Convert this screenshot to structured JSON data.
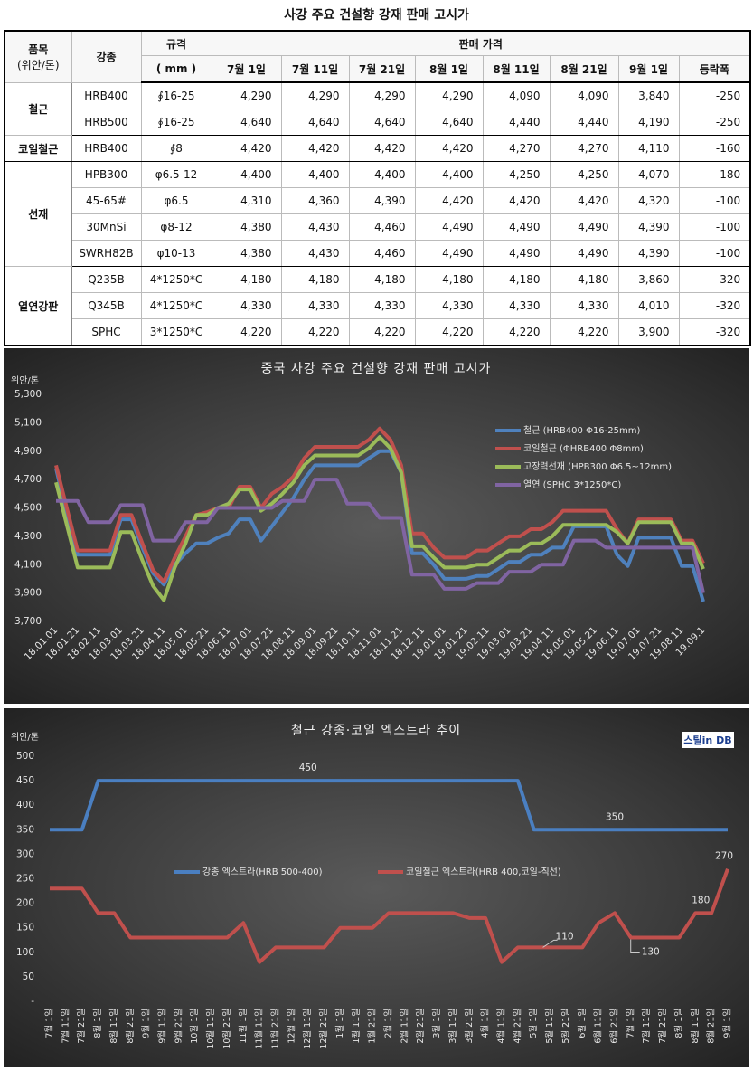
{
  "title": "사강 주요 건설향 강재 판매 고시가",
  "table": {
    "header": {
      "item": "품목",
      "unit": "(위안/톤)",
      "grade": "강종",
      "spec": "규격",
      "spec_unit": "( mm )",
      "price": "판매 가격",
      "dates": [
        "7월 1일",
        "7월 11일",
        "7월 21일",
        "8월 1일",
        "8월 11일",
        "8월 21일",
        "9월 1일",
        "등락폭"
      ]
    },
    "groups": [
      {
        "name": "철근",
        "rows": [
          {
            "grade": "HRB400",
            "spec": "∮16-25",
            "prices": [
              "4,290",
              "4,290",
              "4,290",
              "4,290",
              "4,090",
              "4,090",
              "3,840"
            ],
            "change": "-250"
          },
          {
            "grade": "HRB500",
            "spec": "∮16-25",
            "prices": [
              "4,640",
              "4,640",
              "4,640",
              "4,640",
              "4,440",
              "4,440",
              "4,190"
            ],
            "change": "-250"
          }
        ]
      },
      {
        "name": "코일철근",
        "rows": [
          {
            "grade": "HRB400",
            "spec": "∮8",
            "prices": [
              "4,420",
              "4,420",
              "4,420",
              "4,420",
              "4,270",
              "4,270",
              "4,110"
            ],
            "change": "-160"
          }
        ]
      },
      {
        "name": "선재",
        "rows": [
          {
            "grade": "HPB300",
            "spec": "φ6.5-12",
            "prices": [
              "4,400",
              "4,400",
              "4,400",
              "4,400",
              "4,250",
              "4,250",
              "4,070"
            ],
            "change": "-180"
          },
          {
            "grade": "45-65#",
            "spec": "φ6.5",
            "prices": [
              "4,310",
              "4,360",
              "4,390",
              "4,420",
              "4,420",
              "4,420",
              "4,320"
            ],
            "change": "-100"
          },
          {
            "grade": "30MnSi",
            "spec": "φ8-12",
            "prices": [
              "4,380",
              "4,430",
              "4,460",
              "4,490",
              "4,490",
              "4,490",
              "4,390"
            ],
            "change": "-100"
          },
          {
            "grade": "SWRH82B",
            "spec": "φ10-13",
            "prices": [
              "4,380",
              "4,430",
              "4,460",
              "4,490",
              "4,490",
              "4,490",
              "4,390"
            ],
            "change": "-100"
          }
        ]
      },
      {
        "name": "열연강판",
        "rows": [
          {
            "grade": "Q235B",
            "spec": "4*1250*C",
            "prices": [
              "4,180",
              "4,180",
              "4,180",
              "4,180",
              "4,180",
              "4,180",
              "3,860"
            ],
            "change": "-320"
          },
          {
            "grade": "Q345B",
            "spec": "4*1250*C",
            "prices": [
              "4,330",
              "4,330",
              "4,330",
              "4,330",
              "4,330",
              "4,330",
              "4,010"
            ],
            "change": "-320"
          },
          {
            "grade": "SPHC",
            "spec": "3*1250*C",
            "prices": [
              "4,220",
              "4,220",
              "4,220",
              "4,220",
              "4,220",
              "4,220",
              "3,900"
            ],
            "change": "-320"
          }
        ]
      }
    ]
  },
  "chart_data": [
    {
      "type": "line",
      "title": "중국 사강 주요 건설향 강재 판매 고시가",
      "y_label": "위안/톤",
      "legend": "upper right",
      "categories": [
        "18.01.01",
        null,
        "18.01.21",
        null,
        "18.02.11",
        null,
        "18.03.01",
        null,
        "18.03.21",
        null,
        "18.04.11",
        null,
        "18.05.01",
        null,
        "18.05.21",
        null,
        "18.06.11",
        null,
        "18.07.01",
        null,
        "18.07.21",
        null,
        "18.08.11",
        null,
        "18.09.01",
        null,
        "18.09.21",
        null,
        "18.10.11",
        null,
        "18.11.01",
        null,
        "18.11.21",
        null,
        "18.12.11",
        null,
        "19.01.01",
        null,
        "19.01.21",
        null,
        "19.02.11",
        null,
        "19.03.01",
        null,
        "19.03.21",
        null,
        "19.04.11",
        null,
        "19.05.01",
        null,
        "19.05.21",
        null,
        "19.06.11",
        null,
        "19.07.01",
        null,
        "19.07.21",
        null,
        "19.08.11",
        null,
        "19.09.1"
      ],
      "ylim": [
        3700,
        5300
      ],
      "yticks": [
        {
          "value": 3700,
          "label": "3,700"
        },
        {
          "value": 3900,
          "label": "3,900"
        },
        {
          "value": 4100,
          "label": "4,100"
        },
        {
          "value": 4300,
          "label": "4,300"
        },
        {
          "value": 4500,
          "label": "4,500"
        },
        {
          "value": 4700,
          "label": "4,700"
        },
        {
          "value": 4900,
          "label": "4,900"
        },
        {
          "value": 5100,
          "label": "5,100"
        },
        {
          "value": 5300,
          "label": "5,300"
        }
      ],
      "series": [
        {
          "name": "철근 (HRB400 Φ16-25mm)",
          "color": "#4f81bd",
          "values": [
            4780,
            4450,
            4170,
            4170,
            4170,
            4170,
            4420,
            4420,
            4220,
            4040,
            3960,
            4100,
            4180,
            4250,
            4250,
            4290,
            4320,
            4420,
            4420,
            4270,
            4370,
            4470,
            4570,
            4700,
            4800,
            4800,
            4800,
            4800,
            4800,
            4850,
            4900,
            4900,
            4750,
            4180,
            4180,
            4100,
            4000,
            4000,
            4000,
            4020,
            4020,
            4070,
            4120,
            4120,
            4170,
            4170,
            4220,
            4220,
            4370,
            4370,
            4370,
            4370,
            4170,
            4090,
            4290,
            4290,
            4290,
            4290,
            4090,
            4090,
            3840
          ]
        },
        {
          "name": "코일철근 (ΦHRB400 Φ8mm)",
          "color": "#c0504d",
          "values": [
            4800,
            4500,
            4200,
            4200,
            4200,
            4200,
            4450,
            4450,
            4250,
            4060,
            3980,
            4150,
            4300,
            4450,
            4470,
            4500,
            4500,
            4650,
            4650,
            4500,
            4600,
            4650,
            4720,
            4850,
            4930,
            4930,
            4930,
            4930,
            4930,
            4980,
            5060,
            4980,
            4800,
            4320,
            4320,
            4220,
            4150,
            4150,
            4150,
            4200,
            4200,
            4250,
            4300,
            4300,
            4350,
            4350,
            4400,
            4480,
            4480,
            4480,
            4480,
            4480,
            4350,
            4250,
            4420,
            4420,
            4420,
            4420,
            4270,
            4270,
            4110
          ]
        },
        {
          "name": "고장력선재 (HPB300 Φ6.5~12mm)",
          "color": "#9bbb59",
          "values": [
            4680,
            4380,
            4080,
            4080,
            4080,
            4080,
            4330,
            4330,
            4130,
            3950,
            3850,
            4080,
            4250,
            4450,
            4450,
            4500,
            4530,
            4630,
            4630,
            4480,
            4530,
            4600,
            4680,
            4800,
            4870,
            4870,
            4870,
            4870,
            4870,
            4920,
            5000,
            4920,
            4750,
            4230,
            4230,
            4150,
            4080,
            4080,
            4080,
            4100,
            4100,
            4150,
            4200,
            4200,
            4250,
            4250,
            4300,
            4380,
            4380,
            4380,
            4380,
            4380,
            4330,
            4250,
            4400,
            4400,
            4400,
            4400,
            4250,
            4250,
            4070
          ]
        },
        {
          "name": "열연 (SPHC 3*1250*C)",
          "color": "#8064a2",
          "values": [
            4550,
            4550,
            4550,
            4400,
            4400,
            4400,
            4520,
            4520,
            4520,
            4270,
            4270,
            4270,
            4400,
            4400,
            4400,
            4500,
            4500,
            4500,
            4500,
            4500,
            4500,
            4550,
            4550,
            4550,
            4700,
            4700,
            4700,
            4530,
            4530,
            4530,
            4430,
            4430,
            4430,
            4030,
            4030,
            4030,
            3930,
            3930,
            3930,
            3970,
            3970,
            3970,
            4050,
            4050,
            4050,
            4100,
            4100,
            4100,
            4270,
            4270,
            4270,
            4220,
            4220,
            4220,
            4220,
            4220,
            4220,
            4220,
            4220,
            4220,
            3900
          ]
        }
      ]
    },
    {
      "type": "line",
      "title": "철근 강종·코일 엑스트라 추이",
      "y_label": "위안/톤",
      "logo": "스틸in DB",
      "legend": "center",
      "categories": [
        "7월 1일",
        "7월 11일",
        "7월 21일",
        "8월 1일",
        "8월 11일",
        "8월 21일",
        "9월 1일",
        "9월 11일",
        "9월 21일",
        "10월 1일",
        "10월 11일",
        "10월 21일",
        "11월 1일",
        "11월 11일",
        "11월 21일",
        "12월 1일",
        "12월 11일",
        "12월 21일",
        "1월 1일",
        "1월 11일",
        "1월 21일",
        "2월 1일",
        "2월 11일",
        "2월 21일",
        "3월 1일",
        "3월 11일",
        "3월 21일",
        "4월 1일",
        "4월 11일",
        "4월 21일",
        "5월 1일",
        "5월 11일",
        "5월 21일",
        "6월 1일",
        "6월 11일",
        "6월 21일",
        "7월 1일",
        "7월 11일",
        "7월 21일",
        "8월 1일",
        "8월 11일",
        "8월 21일",
        "9월 1일"
      ],
      "ylim": [
        0,
        500
      ],
      "yticks": [
        {
          "value": 0,
          "label": "-"
        },
        50,
        100,
        150,
        200,
        250,
        300,
        350,
        400,
        450,
        500
      ],
      "series": [
        {
          "name": "강종 엑스트라(HRB 500-400)",
          "color": "#4a7fc1",
          "values": [
            350,
            350,
            350,
            450,
            450,
            450,
            450,
            450,
            450,
            450,
            450,
            450,
            450,
            450,
            450,
            450,
            450,
            450,
            450,
            450,
            450,
            450,
            450,
            450,
            450,
            450,
            450,
            450,
            450,
            450,
            350,
            350,
            350,
            350,
            350,
            350,
            350,
            350,
            350,
            350,
            350,
            350,
            350
          ]
        },
        {
          "name": "코일철근 엑스트라(HRB 400,코일-직선)",
          "color": "#c0504d",
          "values": [
            230,
            230,
            230,
            180,
            180,
            130,
            130,
            130,
            130,
            130,
            130,
            130,
            160,
            80,
            110,
            110,
            110,
            110,
            150,
            150,
            150,
            180,
            180,
            180,
            180,
            180,
            170,
            170,
            80,
            110,
            110,
            110,
            110,
            110,
            160,
            180,
            130,
            130,
            130,
            130,
            180,
            180,
            270
          ]
        }
      ]
    }
  ]
}
